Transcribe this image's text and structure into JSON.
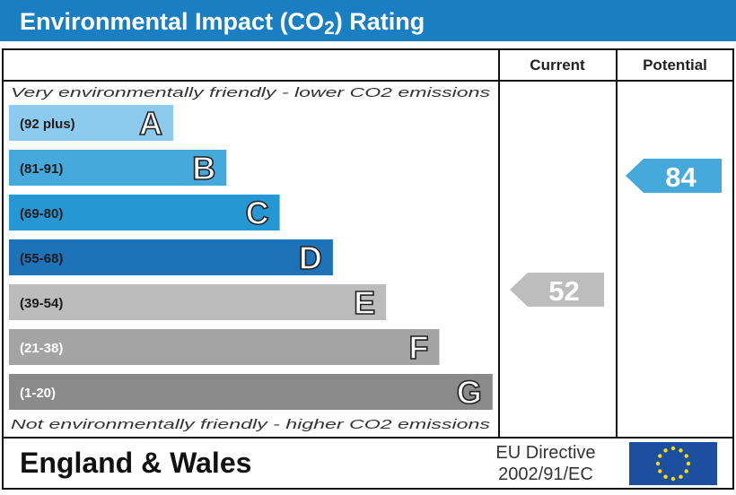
{
  "chart_data": {
    "type": "bar",
    "title": "Environmental Impact (CO2) Rating",
    "top_note": "Very environmentally friendly - lower CO2 emissions",
    "bottom_note": "Not environmentally friendly - higher CO2 emissions",
    "column_headers": {
      "current": "Current",
      "potential": "Potential"
    },
    "bands": [
      {
        "letter": "A",
        "range": "(92 plus)",
        "color": "#8ccbee",
        "label_color": "#1a1a1a"
      },
      {
        "letter": "B",
        "range": "(81-91)",
        "color": "#45a9dc",
        "label_color": "#1a1a1a"
      },
      {
        "letter": "C",
        "range": "(69-80)",
        "color": "#2598d4",
        "label_color": "#1a1a1a"
      },
      {
        "letter": "D",
        "range": "(55-68)",
        "color": "#1d72b8",
        "label_color": "#1a1a1a"
      },
      {
        "letter": "E",
        "range": "(39-54)",
        "color": "#bcbcbc",
        "label_color": "#1a1a1a"
      },
      {
        "letter": "F",
        "range": "(21-38)",
        "color": "#a4a4a4",
        "label_color": "#ffffff"
      },
      {
        "letter": "G",
        "range": "(1-20)",
        "color": "#8a8a8a",
        "label_color": "#ffffff"
      }
    ],
    "current": {
      "value": 52,
      "band": "E",
      "color": "#bdbdbd"
    },
    "potential": {
      "value": 84,
      "band": "B",
      "color": "#45a9dc"
    }
  },
  "footer": {
    "region": "England & Wales",
    "directive_line1": "EU Directive",
    "directive_line2": "2002/91/EC",
    "flag_icon": "eu-flag-icon"
  },
  "colors": {
    "header": "#1a7ec2",
    "eu_blue": "#1d4fa0",
    "eu_star": "#ffdd00"
  }
}
